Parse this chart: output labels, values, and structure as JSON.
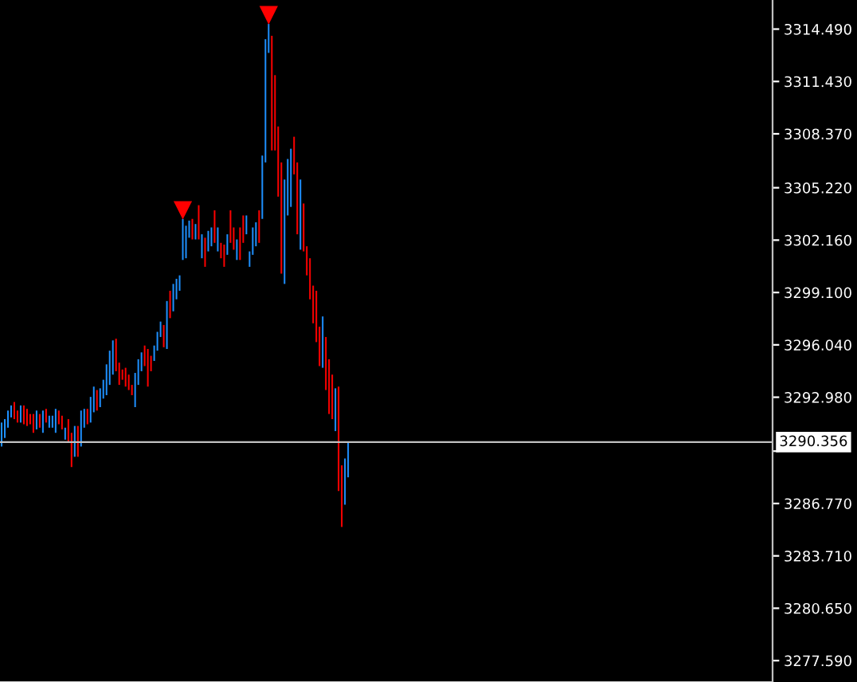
{
  "chart_data": {
    "type": "bar",
    "categories": [
      null,
      null,
      null,
      null,
      null,
      null,
      null,
      null,
      null,
      null,
      null,
      null,
      null,
      null,
      null,
      null,
      null,
      null,
      null,
      null,
      null,
      null,
      null,
      null,
      null,
      null,
      null,
      null,
      null,
      null,
      null,
      null,
      null,
      null,
      null,
      null,
      null,
      null,
      null,
      null,
      null,
      null,
      null,
      null,
      null,
      null,
      null,
      null,
      null,
      null,
      null,
      null,
      null,
      null,
      null,
      null,
      null,
      null,
      null,
      null,
      null,
      null,
      null,
      null,
      null,
      null,
      null,
      null,
      null,
      null,
      null,
      null,
      null,
      null,
      null,
      null,
      null,
      null,
      null,
      null,
      null,
      null,
      null,
      null,
      null,
      null,
      null,
      null,
      null,
      null,
      null,
      null,
      null,
      null,
      null,
      null,
      null,
      null,
      null,
      null,
      null,
      null,
      null,
      null,
      null,
      null,
      null,
      null,
      null,
      null,
      null,
      null,
      null,
      null,
      null,
      null,
      null,
      null,
      null,
      null,
      null,
      null,
      null,
      null,
      null,
      null,
      null,
      null,
      null,
      null,
      null,
      null,
      null,
      null,
      null,
      null,
      null,
      null,
      null,
      null,
      null,
      null,
      null,
      null,
      null,
      null,
      null,
      null,
      null,
      null,
      null,
      null,
      null,
      null,
      null,
      null,
      null,
      null,
      null,
      null,
      null,
      null,
      null,
      null,
      null,
      null,
      null,
      null,
      null,
      null,
      null,
      null,
      null,
      null,
      null,
      null,
      null,
      null,
      null,
      null,
      null,
      null,
      null,
      null,
      null,
      null,
      null,
      null,
      null,
      null,
      null,
      null,
      null,
      null,
      null,
      null,
      null,
      null,
      null,
      null,
      null,
      null,
      null,
      null,
      null,
      null,
      null,
      null,
      null,
      null,
      null,
      null,
      null,
      null,
      null,
      null,
      null,
      null,
      null,
      null,
      null,
      null,
      null,
      null,
      null,
      null,
      null,
      null,
      null,
      null,
      null,
      null,
      null,
      null,
      null,
      null,
      null,
      null,
      null,
      null,
      null,
      null,
      null
    ],
    "series": [
      {
        "type": "bar",
        "base": [
          3290.1,
          3290.6,
          3291.2,
          3291.8,
          3291.7,
          3291.5,
          3291.5,
          3291.4,
          3291.3,
          3291.4,
          3290.9,
          3291.1,
          3291.2,
          3290.9,
          3291.5,
          3291.2,
          3291.2,
          3290.9,
          3291.4,
          3291.1,
          3290.5,
          3290.4,
          3288.9,
          3289.5,
          3289.5,
          3290.1,
          3291.2,
          3291.4,
          3291.5,
          3292.1,
          3292.2,
          3292.4,
          3292.9,
          3293.1,
          3293.7,
          3294.3,
          3294.5,
          3293.7,
          3294.0,
          3293.6,
          3293.4,
          3293.1,
          3292.4,
          3293.7,
          3294.5,
          3294.8,
          3293.6,
          3294.5,
          3295.1,
          3295.7,
          3296.5,
          3295.9,
          3295.8,
          3297.6,
          3298.0,
          3298.7,
          3299.2,
          3301.0,
          3301.1,
          3302.3,
          3302.2,
          3302.2,
          3302.2,
          3301.1,
          3300.6,
          3301.5,
          3301.8,
          3302.0,
          3301.5,
          3301.1,
          3300.6,
          3301.3,
          3302.0,
          3301.6,
          3301.0,
          3301.0,
          3302.0,
          3302.5,
          3300.6,
          3301.3,
          3301.8,
          3302.0,
          3303.4,
          3306.7,
          3313.1,
          3307.4,
          3307.4,
          3304.7,
          3300.2,
          3299.6,
          3303.6,
          3304.1,
          3306.0,
          3302.5,
          3301.6,
          3301.5,
          3300.1,
          3298.7,
          3297.3,
          3296.2,
          3294.8,
          3294.7,
          3293.4,
          3292.0,
          3291.7,
          3291.0,
          3287.5,
          3285.4,
          3286.7,
          3288.3,
          null,
          null,
          null,
          null,
          null,
          null,
          null,
          null,
          null,
          null,
          null,
          null,
          null,
          null,
          null,
          null,
          null,
          null,
          null,
          null,
          null,
          null,
          null,
          null,
          null,
          null,
          null,
          null,
          null,
          null,
          null,
          null,
          null,
          null,
          null,
          null,
          null,
          null,
          null,
          null,
          null,
          null,
          null,
          null,
          null,
          null,
          null,
          null,
          null,
          null,
          null,
          null,
          null,
          null,
          null,
          null,
          null,
          null,
          null,
          null,
          null,
          null,
          null,
          null,
          null,
          null,
          null,
          null,
          null,
          null,
          null,
          null,
          null,
          null,
          null,
          null,
          null,
          null,
          null,
          null,
          null,
          null,
          null,
          null,
          null,
          null,
          null,
          null,
          null,
          null,
          null,
          null,
          null,
          null,
          null,
          null,
          null,
          null,
          null,
          null,
          null,
          null,
          null,
          null,
          null,
          null,
          null,
          null,
          null,
          null,
          null,
          null,
          null,
          null,
          null,
          null,
          null,
          null,
          null,
          null,
          null,
          null,
          null,
          null,
          null,
          null,
          null,
          null,
          null,
          null,
          null,
          null,
          null
        ],
        "values": [
          1.4,
          1.1,
          1.0,
          0.7,
          1.0,
          0.7,
          1.0,
          1.1,
          1.0,
          0.6,
          1.1,
          1.1,
          0.8,
          1.3,
          0.8,
          0.7,
          0.7,
          1.4,
          0.8,
          0.8,
          0.7,
          1.3,
          2.0,
          1.8,
          1.8,
          2.1,
          1.1,
          0.9,
          1.5,
          1.5,
          1.2,
          1.1,
          1.1,
          1.8,
          2.0,
          2.0,
          1.9,
          1.3,
          0.6,
          1.1,
          0.9,
          0.6,
          2.0,
          1.5,
          1.1,
          1.2,
          2.2,
          0.9,
          0.9,
          1.1,
          0.9,
          1.3,
          2.8,
          1.6,
          1.6,
          1.2,
          0.9,
          2.4,
          1.9,
          1.0,
          1.2,
          0.9,
          2.0,
          1.4,
          1.7,
          1.2,
          1.1,
          1.9,
          1.4,
          0.9,
          1.3,
          1.2,
          1.9,
          1.3,
          1.2,
          1.9,
          1.6,
          1.1,
          0.9,
          1.6,
          1.4,
          1.9,
          3.7,
          7.2,
          1.7,
          6.7,
          4.4,
          4.1,
          6.5,
          6.1,
          3.3,
          3.4,
          2.2,
          4.2,
          4.1,
          2.8,
          1.7,
          2.4,
          2.2,
          3.0,
          2.3,
          3.0,
          3.1,
          3.2,
          2.6,
          2.5,
          6.1,
          3.6,
          2.7,
          2.1,
          null,
          null,
          null,
          null,
          null,
          null,
          null,
          null,
          null,
          null,
          null,
          null,
          null,
          null,
          null,
          null,
          null,
          null,
          null,
          null,
          null,
          null,
          null,
          null,
          null,
          null,
          null,
          null,
          null,
          null,
          null,
          null,
          null,
          null,
          null,
          null,
          null,
          null,
          null,
          null,
          null,
          null,
          null,
          null,
          null,
          null,
          null,
          null,
          null,
          null,
          null,
          null,
          null,
          null,
          null,
          null,
          null,
          null,
          null,
          null,
          null,
          null,
          null,
          null,
          null,
          null,
          null,
          null,
          null,
          null,
          null,
          null,
          null,
          null,
          null,
          null,
          null,
          null,
          null,
          null,
          null,
          null,
          null,
          null,
          null,
          null,
          null,
          null,
          null,
          null,
          null,
          null,
          null,
          null,
          null,
          null,
          null,
          null,
          null,
          null,
          null,
          null,
          null,
          null,
          null,
          null,
          null,
          null,
          null,
          null,
          null,
          null,
          null,
          null,
          null,
          null,
          null,
          null,
          null,
          null,
          null,
          null,
          null,
          null,
          null,
          null,
          null,
          null,
          null,
          null,
          null,
          null,
          null
        ],
        "colors": [
          "#1e90ff",
          "#1e90ff",
          "#1e90ff",
          "#1e90ff",
          "#ff0000",
          "#ff0000",
          "#1e90ff",
          "#ff0000",
          "#ff0000",
          "#ff0000",
          "#ff0000",
          "#1e90ff",
          "#ff0000",
          "#1e90ff",
          "#ff0000",
          "#1e90ff",
          "#1e90ff",
          "#1e90ff",
          "#ff0000",
          "#ff0000",
          "#1e90ff",
          "#ff0000",
          "#ff0000",
          "#1e90ff",
          "#ff0000",
          "#1e90ff",
          "#1e90ff",
          "#ff0000",
          "#1e90ff",
          "#1e90ff",
          "#ff0000",
          "#1e90ff",
          "#1e90ff",
          "#1e90ff",
          "#1e90ff",
          "#1e90ff",
          "#ff0000",
          "#ff0000",
          "#ff0000",
          "#ff0000",
          "#ff0000",
          "#ff0000",
          "#1e90ff",
          "#1e90ff",
          "#1e90ff",
          "#ff0000",
          "#ff0000",
          "#ff0000",
          "#1e90ff",
          "#1e90ff",
          "#1e90ff",
          "#ff0000",
          "#1e90ff",
          "#ff0000",
          "#1e90ff",
          "#1e90ff",
          "#1e90ff",
          "#1e90ff",
          "#1e90ff",
          "#1e90ff",
          "#ff0000",
          "#1e90ff",
          "#ff0000",
          "#1e90ff",
          "#ff0000",
          "#1e90ff",
          "#1e90ff",
          "#ff0000",
          "#1e90ff",
          "#ff0000",
          "#ff0000",
          "#1e90ff",
          "#ff0000",
          "#ff0000",
          "#1e90ff",
          "#ff0000",
          "#ff0000",
          "#1e90ff",
          "#1e90ff",
          "#1e90ff",
          "#1e90ff",
          "#ff0000",
          "#1e90ff",
          "#1e90ff",
          "#1e90ff",
          "#ff0000",
          "#ff0000",
          "#ff0000",
          "#ff0000",
          "#1e90ff",
          "#1e90ff",
          "#1e90ff",
          "#ff0000",
          "#ff0000",
          "#1e90ff",
          "#ff0000",
          "#ff0000",
          "#ff0000",
          "#ff0000",
          "#ff0000",
          "#ff0000",
          "#1e90ff",
          "#ff0000",
          "#ff0000",
          "#ff0000",
          "#1e90ff",
          "#ff0000",
          "#ff0000",
          "#1e90ff",
          "#1e90ff",
          null,
          null,
          null,
          null,
          null,
          null,
          null,
          null,
          null,
          null,
          null,
          null,
          null,
          null,
          null,
          null,
          null,
          null,
          null,
          null,
          null,
          null,
          null,
          null,
          null,
          null,
          null,
          null,
          null,
          null,
          null,
          null,
          null,
          null,
          null,
          null,
          null,
          null,
          null,
          null,
          null,
          null,
          null,
          null,
          null,
          null,
          null,
          null,
          null,
          null,
          null,
          null,
          null,
          null,
          null,
          null,
          null,
          null,
          null,
          null,
          null,
          null,
          null,
          null,
          null,
          null,
          null,
          null,
          null,
          null,
          null,
          null,
          null,
          null,
          null,
          null,
          null,
          null,
          null,
          null,
          null,
          null,
          null,
          null,
          null,
          null,
          null,
          null,
          null,
          null,
          null,
          null,
          null,
          null,
          null,
          null,
          null,
          null,
          null,
          null,
          null,
          null,
          null,
          null,
          null,
          null,
          null,
          null,
          null,
          null,
          null,
          null,
          null,
          null,
          null,
          null,
          null,
          null,
          null,
          null,
          null,
          null,
          null,
          null,
          null,
          null,
          null,
          null,
          null,
          null,
          null,
          null,
          null
        ]
      },
      {
        "type": "scatter",
        "color": "#ff0000",
        "marker": "triangle",
        "values": [
          null,
          null,
          null,
          null,
          null,
          null,
          null,
          null,
          null,
          null,
          null,
          null,
          null,
          null,
          null,
          null,
          null,
          null,
          null,
          null,
          null,
          null,
          null,
          null,
          null,
          null,
          null,
          null,
          null,
          null,
          null,
          null,
          null,
          null,
          null,
          null,
          null,
          null,
          null,
          null,
          null,
          null,
          null,
          null,
          null,
          null,
          null,
          null,
          null,
          null,
          null,
          null,
          null,
          null,
          null,
          null,
          null,
          3303.9,
          null,
          null,
          null,
          null,
          null,
          null,
          null,
          null,
          null,
          null,
          null,
          null,
          null,
          null,
          null,
          null,
          null,
          null,
          null,
          null,
          null,
          null,
          null,
          null,
          null,
          null,
          3315.3,
          null,
          null,
          null,
          null,
          null,
          null,
          null,
          null,
          null,
          null,
          null,
          null,
          null,
          null,
          null,
          null,
          null,
          null,
          null,
          null,
          null,
          null,
          null,
          null,
          null,
          null,
          null,
          null,
          null,
          null,
          null,
          null,
          null,
          null,
          null,
          null,
          null,
          null,
          null,
          null,
          null,
          null,
          null,
          null,
          null,
          null,
          null,
          null,
          null,
          null,
          null,
          null,
          null,
          null,
          null,
          null,
          null,
          null,
          null,
          null,
          null,
          null,
          null,
          null,
          null,
          null,
          null,
          null,
          null,
          null,
          null,
          null,
          null,
          null,
          null,
          null,
          null,
          null,
          null,
          null,
          null,
          null,
          null,
          null,
          null,
          null,
          null,
          null,
          null,
          null,
          null,
          null,
          null,
          null,
          null,
          null,
          null,
          null,
          null,
          null,
          null,
          null,
          null,
          null,
          null,
          null,
          null,
          null,
          null,
          null,
          null,
          null,
          null,
          null,
          null,
          null,
          null,
          null,
          null,
          null,
          null,
          null,
          null,
          null,
          null,
          null,
          null,
          null,
          null,
          null,
          null,
          null,
          null,
          null,
          null,
          null,
          null,
          null,
          null,
          null,
          null,
          null,
          null,
          null,
          null,
          null,
          null,
          null,
          null,
          null,
          null,
          null,
          null,
          null,
          null,
          null,
          null,
          null
        ]
      }
    ],
    "ylim": [
      3276.34,
      3316.19
    ],
    "yticks": [
      {
        "value": 3277.59,
        "label": "3277.590"
      },
      {
        "value": 3280.65,
        "label": "3280.650"
      },
      {
        "value": 3283.71,
        "label": "3283.710"
      },
      {
        "value": 3286.77,
        "label": "3286.770"
      },
      {
        "value": 3289.83,
        "label": null
      },
      {
        "value": 3292.98,
        "label": "3292.980"
      },
      {
        "value": 3296.04,
        "label": "3296.040"
      },
      {
        "value": 3299.1,
        "label": "3299.100"
      },
      {
        "value": 3302.16,
        "label": "3302.160"
      },
      {
        "value": 3305.22,
        "label": "3305.220"
      },
      {
        "value": 3308.37,
        "label": "3308.370"
      },
      {
        "value": 3311.43,
        "label": "3311.430"
      },
      {
        "value": 3314.49,
        "label": "3314.490"
      }
    ],
    "ref_lines": [
      {
        "axis": "y",
        "value": 3290.356,
        "label": "3290.356",
        "color": "#c0c0c0"
      }
    ],
    "grid": false
  }
}
